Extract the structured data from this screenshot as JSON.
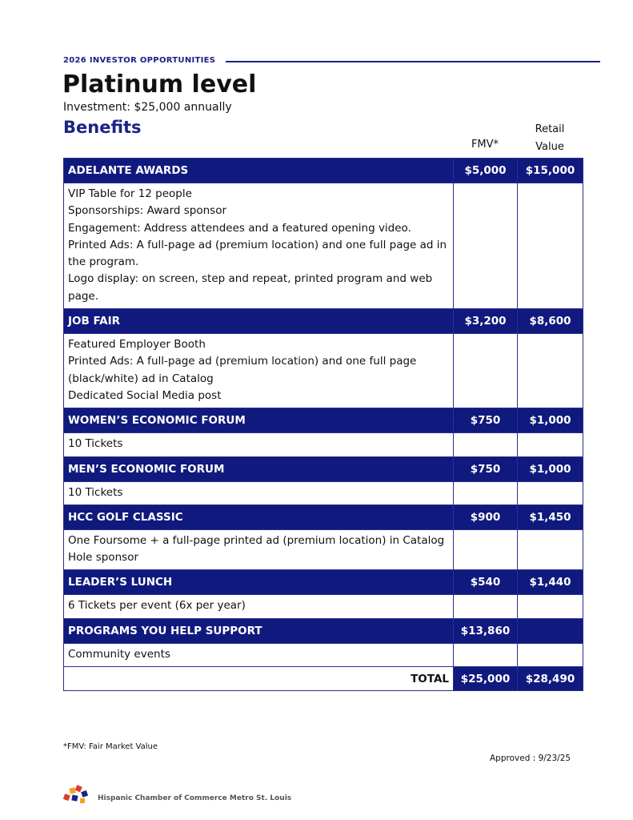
{
  "header": {
    "eyebrow": "2026 INVESTOR OPPORTUNITIES",
    "title": "Platinum level",
    "investment": "Investment: $25,000 annually",
    "benefits": "Benefits"
  },
  "table": {
    "columns": [
      "FMV*",
      "Retail Value"
    ],
    "sections": [
      {
        "name": "ADELANTE AWARDS",
        "fmv": "$5,000",
        "retail": "$15,000",
        "lines": [
          "VIP Table for 12 people",
          "Sponsorships: Award sponsor",
          "Engagement:  Address attendees and a featured opening video.",
          "Printed Ads: A full-page ad (premium location) and one full page ad in the program.",
          "Logo display: on screen, step and repeat, printed program and web page."
        ]
      },
      {
        "name": "JOB FAIR",
        "fmv": "$3,200",
        "retail": "$8,600",
        "lines": [
          "Featured Employer Booth",
          "Printed Ads: A full-page ad (premium location) and one full page (black/white) ad in Catalog",
          "Dedicated Social Media post"
        ]
      },
      {
        "name": "WOMEN’S ECONOMIC FORUM",
        "fmv": "$750",
        "retail": "$1,000",
        "lines": [
          "10 Tickets"
        ]
      },
      {
        "name": "MEN’S ECONOMIC FORUM",
        "fmv": "$750",
        "retail": "$1,000",
        "lines": [
          "10 Tickets"
        ]
      },
      {
        "name": "HCC GOLF CLASSIC",
        "fmv": "$900",
        "retail": "$1,450",
        "lines": [
          "One Foursome + a full-page printed ad (premium location) in Catalog",
          "Hole sponsor"
        ]
      },
      {
        "name": "LEADER’S LUNCH",
        "fmv": "$540",
        "retail": "$1,440",
        "lines": [
          "6 Tickets per event (6x per year)"
        ]
      },
      {
        "name": "PROGRAMS YOU HELP SUPPORT",
        "fmv": "$13,860",
        "lines": [
          "Community events"
        ]
      }
    ],
    "total": {
      "label": "TOTAL",
      "fmv": "$25,000",
      "retail": "$28,490"
    }
  },
  "footer": {
    "note": "*FMV: Fair Market Value",
    "approved": "Approved : 9/23/25",
    "org": "Hispanic Chamber of Commerce Metro St. Louis"
  }
}
